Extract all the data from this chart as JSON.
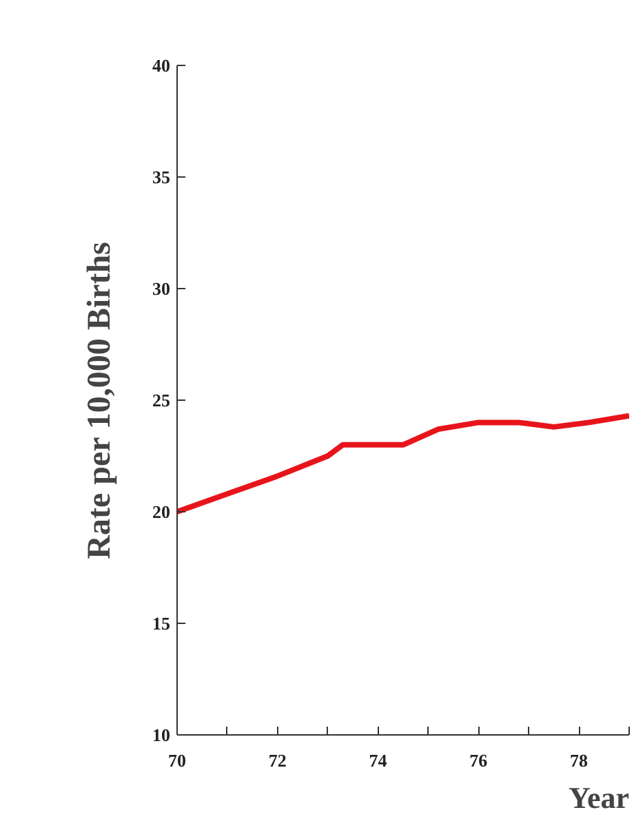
{
  "chart_data": {
    "type": "line",
    "xlabel": "Year",
    "ylabel": "Rate per 10,000 Births",
    "x": [
      70,
      71,
      72,
      73,
      73.3,
      74.5,
      75.2,
      76,
      76.8,
      77.5,
      78.2,
      79
    ],
    "series": [
      {
        "color": "#e8141b",
        "values": [
          20,
          20.8,
          21.6,
          22.5,
          23,
          23,
          23.7,
          24,
          24,
          23.8,
          24,
          24.3
        ]
      }
    ],
    "xlim": [
      70,
      79
    ],
    "xticks": [
      70,
      {
        "value": 71,
        "label": null
      },
      72,
      {
        "value": 73,
        "label": null
      },
      74,
      {
        "value": 75,
        "label": null
      },
      76,
      {
        "value": 77,
        "label": null
      },
      78,
      {
        "value": 79,
        "label": null
      }
    ],
    "ylim": [
      10,
      40
    ],
    "yticks": [
      10,
      15,
      20,
      25,
      30,
      35,
      40
    ],
    "grid": false,
    "marker": "none",
    "line_style": "solid"
  }
}
